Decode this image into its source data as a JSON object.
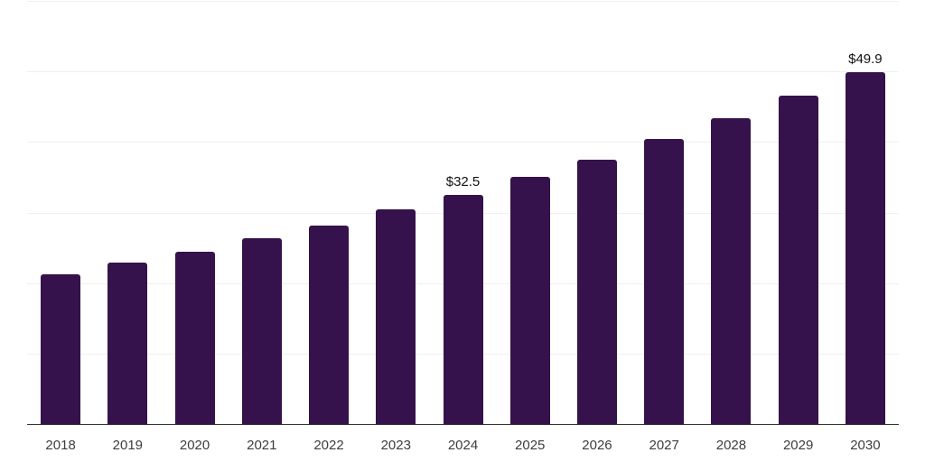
{
  "chart_data": {
    "type": "bar",
    "title": "",
    "xlabel": "",
    "ylabel": "",
    "categories": [
      "2018",
      "2019",
      "2020",
      "2021",
      "2022",
      "2023",
      "2024",
      "2025",
      "2026",
      "2027",
      "2028",
      "2029",
      "2030"
    ],
    "values": [
      21.2,
      22.9,
      24.4,
      26.3,
      28.2,
      30.4,
      32.5,
      35.0,
      37.5,
      40.4,
      43.4,
      46.6,
      49.9
    ],
    "data_labels": [
      {
        "index": 6,
        "text": "$32.5"
      },
      {
        "index": 12,
        "text": "$49.9"
      }
    ],
    "ylim": [
      0,
      60
    ],
    "gridline_values": [
      10,
      20,
      30,
      40,
      50,
      60
    ],
    "grid": "horizontal",
    "legend": "none",
    "colors": {
      "bar": "#35124B",
      "gridline": "#f0f0f0",
      "axis_line": "#333333",
      "tick_label": "#3d3d3d",
      "data_label": "#111111",
      "background": "#ffffff"
    }
  }
}
